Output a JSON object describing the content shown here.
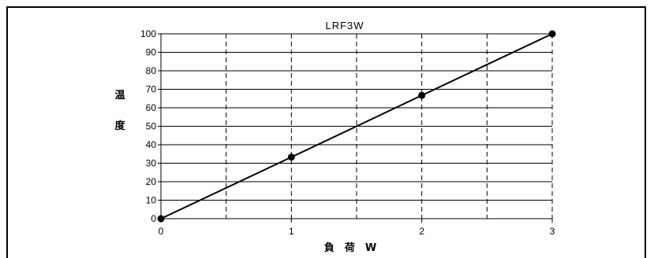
{
  "chart_data": {
    "type": "line",
    "title": "LRF3W",
    "xlabel": "負　荷　W",
    "ylabel": "温度",
    "ylabel_chars": [
      "温",
      "度"
    ],
    "x": [
      0,
      1,
      2,
      3
    ],
    "series": [
      {
        "values": [
          0,
          33.3,
          66.7,
          100
        ]
      }
    ],
    "xlim": [
      0,
      3
    ],
    "ylim": [
      0,
      100
    ],
    "xticks": [
      0,
      1,
      2,
      3
    ],
    "xtick_labels": [
      "0",
      "1",
      "2",
      "3"
    ],
    "yticks": [
      0,
      10,
      20,
      30,
      40,
      50,
      60,
      70,
      80,
      90,
      100
    ],
    "ytick_labels": [
      "0",
      "10",
      "20",
      "30",
      "40",
      "50",
      "60",
      "70",
      "80",
      "90",
      "100"
    ],
    "x_minor_dashed": [
      0.5,
      1,
      1.5,
      2,
      2.5
    ],
    "grid": true,
    "legend": "none",
    "colors": {
      "line": "#000000",
      "grid": "#000000",
      "frame": "#000000"
    }
  }
}
